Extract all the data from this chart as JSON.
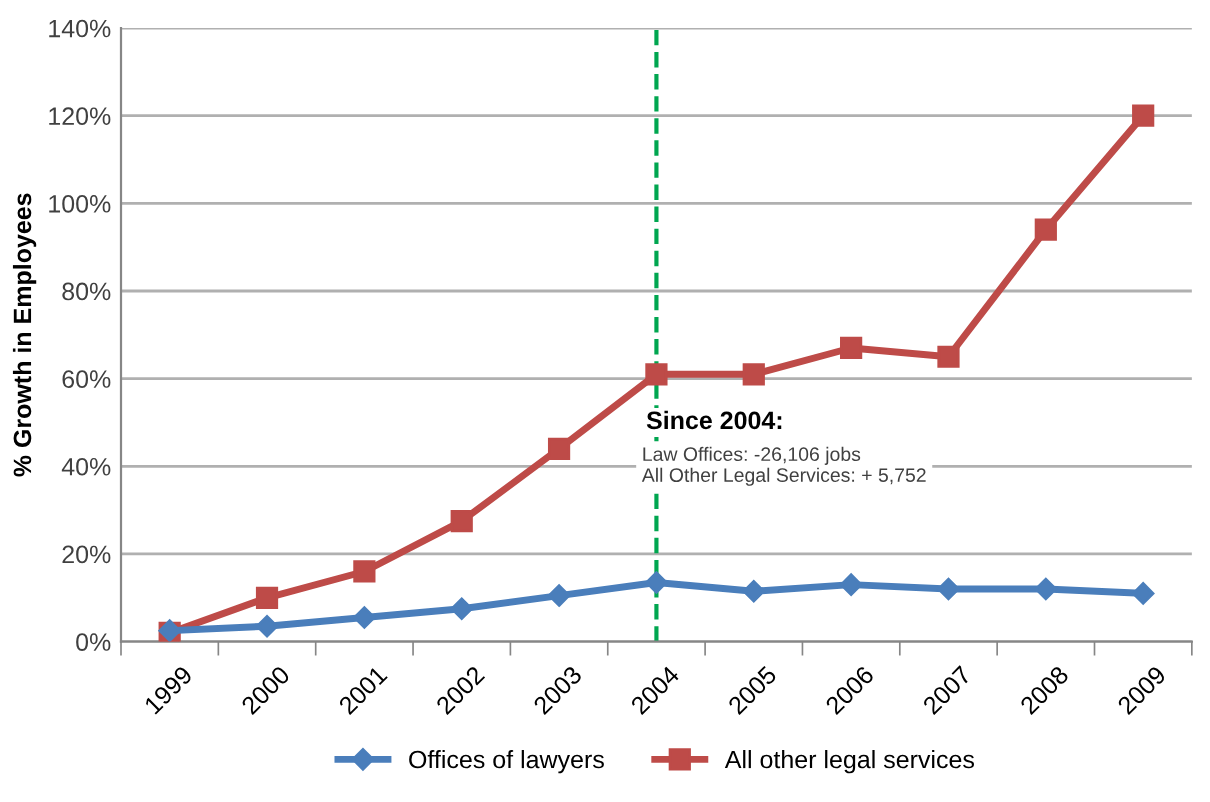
{
  "chart_data": {
    "type": "line",
    "ylabel": "% Growth in Employees",
    "categories": [
      "1999",
      "2000",
      "2001",
      "2002",
      "2003",
      "2004",
      "2005",
      "2006",
      "2007",
      "2008",
      "2009"
    ],
    "series": [
      {
        "name": "Offices of lawyers",
        "color": "#4a7ebb",
        "marker": "diamond",
        "values": [
          2.5,
          3.5,
          5.5,
          7.5,
          10.5,
          13.5,
          11.5,
          13,
          12,
          12,
          11
        ]
      },
      {
        "name": "All other legal services",
        "color": "#be4b48",
        "marker": "square",
        "values": [
          2,
          10,
          16,
          27.5,
          44,
          61,
          61,
          67,
          65,
          94,
          120
        ]
      }
    ],
    "ylim": [
      0,
      140
    ],
    "yticks": [
      {
        "value": 0,
        "label": "0%"
      },
      {
        "value": 20,
        "label": "20%"
      },
      {
        "value": 40,
        "label": "40%"
      },
      {
        "value": 60,
        "label": "60%"
      },
      {
        "value": 80,
        "label": "80%"
      },
      {
        "value": 100,
        "label": "100%"
      },
      {
        "value": 120,
        "label": "120%"
      },
      {
        "value": 140,
        "label": "140%"
      }
    ],
    "grid": "y",
    "legend": "bottom",
    "line_style": "solid",
    "ref_lines": [
      {
        "axis": "x",
        "value": "2004",
        "color": "#00a650",
        "line_style": "dashed"
      }
    ],
    "annotations": [
      "Since 2004:",
      "Law Offices: -26,106 jobs",
      "All Other Legal Services: + 5,752"
    ]
  }
}
